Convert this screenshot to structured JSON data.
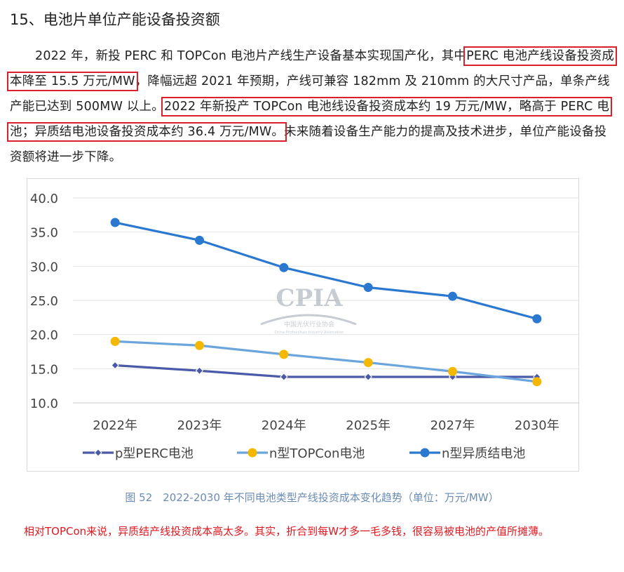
{
  "heading": "15、电池片单位产能设备投资额",
  "paragraph": [
    {
      "text": "2022 年，新投 PERC 和 TOPCon 电池片产线生产设备基本实现国产化，其中",
      "hl": false
    },
    {
      "text": "PERC 电池产线设备投资成本降至 15.5 万元/MW",
      "hl": true
    },
    {
      "text": "，降幅远超 2021 年预期，产线可兼容 182mm 及 210mm 的大尺寸产品，单条产线产能已达到 500MW 以上。",
      "hl": false
    },
    {
      "text": "2022 年新投产 TOPCon 电池线设备投资成本约 19 万元/MW，略高于 PERC 电池；异质结电池设备投资成本约 36.4 万元/MW。",
      "hl": true
    },
    {
      "text": "未来随着设备生产能力的提高及技术进步，单位产能设备投资额将进一步下降。",
      "hl": false
    }
  ],
  "watermark": {
    "brand": "CPIA",
    "cn": "中国光伏行业协会",
    "en": "China Photovoltaic Industry Association"
  },
  "chart_data": {
    "type": "line",
    "categories": [
      "2022年",
      "2023年",
      "2024年",
      "2025年",
      "2027年",
      "2030年"
    ],
    "ylim": [
      10.0,
      40.0
    ],
    "yticks": [
      "10.0",
      "15.0",
      "20.0",
      "25.0",
      "30.0",
      "35.0",
      "40.0"
    ],
    "grid": true,
    "legend_position": "bottom",
    "series": [
      {
        "name": "p型PERC电池",
        "values": [
          15.5,
          14.7,
          13.8,
          13.8,
          13.8,
          13.8
        ],
        "color": "#4a5aa8",
        "marker": "diamond"
      },
      {
        "name": "n型TOPCon电池",
        "values": [
          19.0,
          18.4,
          17.1,
          15.9,
          14.6,
          13.1
        ],
        "color": "#6aa5dc",
        "marker": "circle",
        "marker_color": "#f5b800"
      },
      {
        "name": "n型异质结电池",
        "values": [
          36.4,
          33.8,
          29.8,
          26.9,
          25.6,
          22.3
        ],
        "color": "#2a78d0",
        "marker": "circle"
      }
    ]
  },
  "caption": "图 52　2022-2030 年不同电池类型产线投资成本变化趋势（单位：万元/MW）",
  "note": "相对TOPCon来说，异质结产线投资成本高太多。其实，折合到每W才多一毛多钱，很容易被电池的产值所摊薄。"
}
